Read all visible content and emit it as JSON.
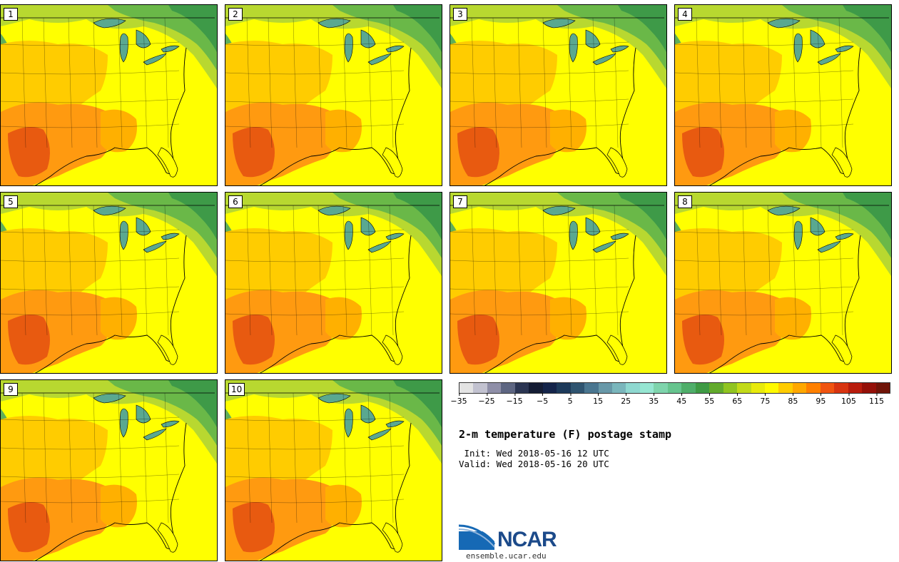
{
  "title": "2-m temperature (F) postage stamp",
  "init": " Init: Wed 2018-05-16 12 UTC",
  "valid": "Valid: Wed 2018-05-16 20 UTC",
  "colors": [
    "#e3e3e3",
    "#c2c2d0",
    "#8f8fa8",
    "#5e6682",
    "#2b3552",
    "#141c34",
    "#14244a",
    "#1d3a5a",
    "#2f5470",
    "#4a7690",
    "#6898a8",
    "#7ab6bc",
    "#8ed8d0",
    "#96e6d2",
    "#7ed4ac",
    "#66c48e",
    "#4fae6a",
    "#3e9a44",
    "#62aa2c",
    "#90c420",
    "#c2da18",
    "#e8ea0c",
    "#fffa00",
    "#ffcc00",
    "#ffa800",
    "#ff8000",
    "#f05410",
    "#d83410",
    "#b81c0c",
    "#941008",
    "#701408"
  ],
  "ticks": [
    "-35",
    "-25",
    "-15",
    "-5",
    "5",
    "15",
    "25",
    "35",
    "45",
    "55",
    "65",
    "75",
    "85",
    "95",
    "105",
    "115"
  ],
  "members": [
    {
      "label": "1"
    },
    {
      "label": "2"
    },
    {
      "label": "3"
    },
    {
      "label": "4"
    },
    {
      "label": "5"
    },
    {
      "label": "6"
    },
    {
      "label": "7"
    },
    {
      "label": "8"
    },
    {
      "label": "9"
    },
    {
      "label": "10"
    }
  ],
  "logo": {
    "name": "NCAR",
    "url": "ensemble.ucar.edu"
  }
}
